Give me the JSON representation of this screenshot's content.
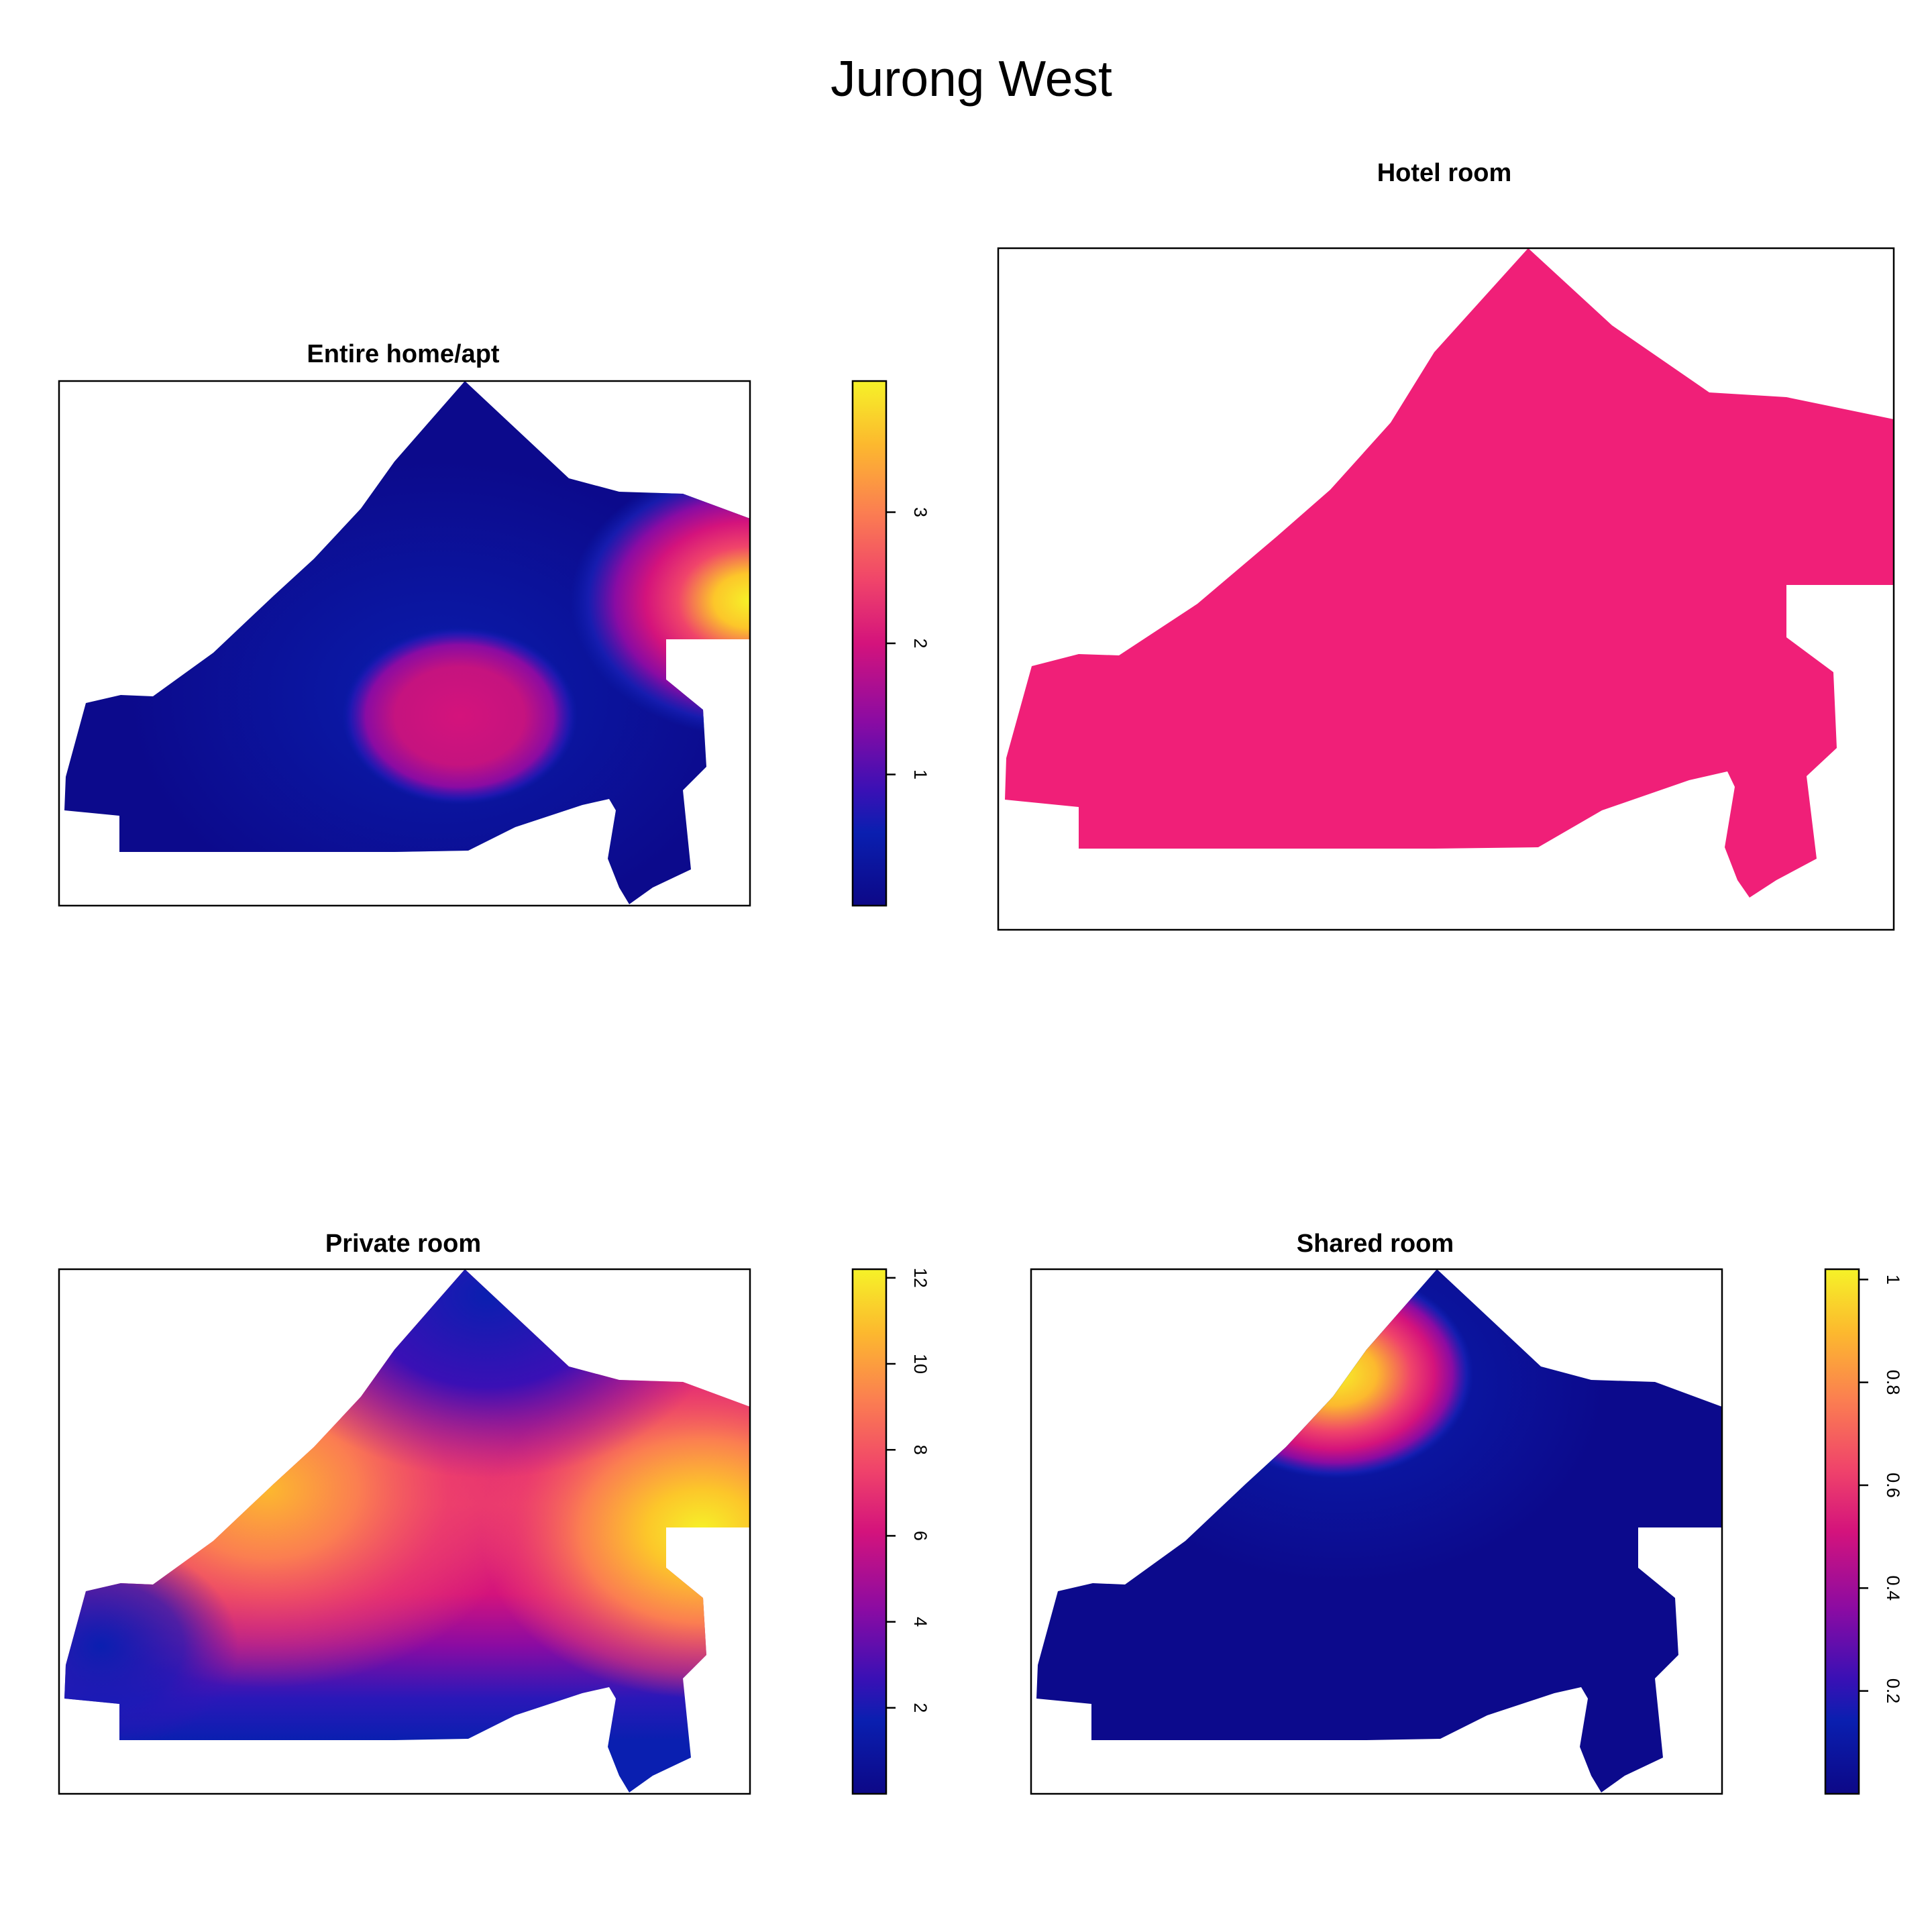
{
  "title": "Jurong West",
  "chart_data": [
    {
      "type": "heatmap",
      "title": "Entire home/apt",
      "colormap": "plasma",
      "legend": "right",
      "zlim": [
        0,
        4
      ],
      "ticks": [
        1,
        2,
        3
      ],
      "hotspots": [
        {
          "x": 0.58,
          "y": 0.64,
          "value": 1.9
        },
        {
          "x": 1.0,
          "y": 0.42,
          "value": 3.9
        }
      ]
    },
    {
      "type": "heatmap",
      "title": "Hotel room",
      "uniform_color": "#F01F78",
      "legend": "none"
    },
    {
      "type": "heatmap",
      "title": "Private room",
      "colormap": "plasma",
      "legend": "right",
      "zlim": [
        0,
        12.2
      ],
      "ticks": [
        2,
        4,
        6,
        8,
        10,
        12
      ],
      "hotspots": [
        {
          "x": 0.3,
          "y": 0.4,
          "value": 10
        },
        {
          "x": 0.92,
          "y": 0.48,
          "value": 12.2
        },
        {
          "x": 0.45,
          "y": 0.55,
          "value": 7
        },
        {
          "x": 0.55,
          "y": 0.3,
          "value": 4
        }
      ]
    },
    {
      "type": "heatmap",
      "title": "Shared room",
      "colormap": "plasma",
      "legend": "right",
      "zlim": [
        0,
        1.02
      ],
      "ticks": [
        0.2,
        0.4,
        0.6,
        0.8,
        1
      ],
      "hotspots": [
        {
          "x": 0.44,
          "y": 0.2,
          "value": 1.0
        }
      ]
    }
  ]
}
